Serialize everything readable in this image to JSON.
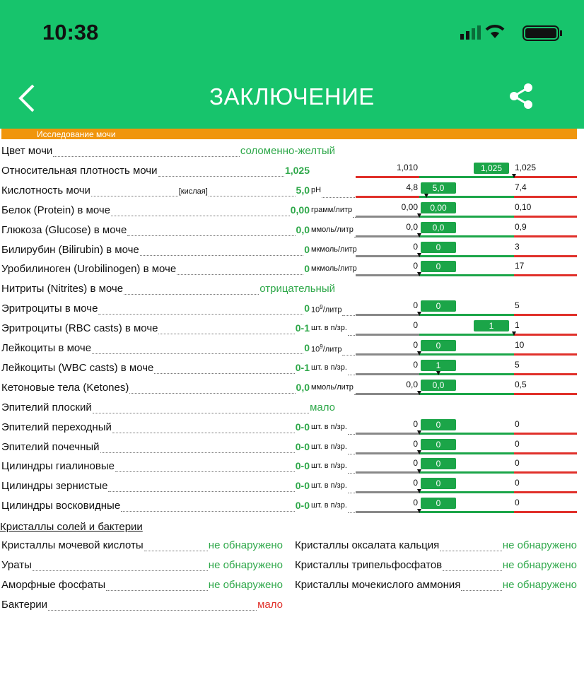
{
  "status_bar": {
    "time": "10:38"
  },
  "header": {
    "title": "ЗАКЛЮЧЕНИЕ"
  },
  "section": "Исследование мочи",
  "rows": [
    {
      "label": "Цвет мочи",
      "value": "соломенно-желтый"
    },
    {
      "label": "Относительная плотность мочи",
      "value": "1,025",
      "range": {
        "low": "1,010",
        "high": "1,025",
        "badge": "1,025"
      }
    },
    {
      "label": "Кислотность мочи",
      "qualifier": "[кислая]",
      "value": "5,0",
      "unit": "pH",
      "range": {
        "low": "4,8",
        "high": "7,4",
        "badge": "5,0"
      }
    },
    {
      "label": "Белок (Protein) в моче",
      "value": "0,00",
      "unit": "грамм/литр",
      "range": {
        "low": "0,00",
        "high": "0,10",
        "badge": "0,00"
      }
    },
    {
      "label": "Глюкоза (Glucose) в моче",
      "value": "0,0",
      "unit": "ммоль/литр",
      "range": {
        "low": "0,0",
        "high": "0,9",
        "badge": "0,0"
      }
    },
    {
      "label": "Билирубин (Bilirubin) в моче",
      "value": "0",
      "unit": "мкмоль/литр",
      "range": {
        "low": "0",
        "high": "3",
        "badge": "0"
      }
    },
    {
      "label": "Уробилиноген (Urobilinogen) в моче",
      "value": "0",
      "unit": "мкмоль/литр",
      "range": {
        "low": "0",
        "high": "17",
        "badge": "0"
      }
    },
    {
      "label": "Нитриты (Nitrites) в моче",
      "value": "отрицательный"
    },
    {
      "label": "Эритроциты в моче",
      "value": "0",
      "unit": "10",
      "unit_sup": "9",
      "unit_rest": "/литр",
      "range": {
        "low": "0",
        "high": "5",
        "badge": "0"
      }
    },
    {
      "label": "Эритроциты (RBC casts) в моче",
      "value": "0-1",
      "unit": "шт. в п/зр.",
      "range": {
        "low": "0",
        "high": "1",
        "badge": "1"
      }
    },
    {
      "label": "Лейкоциты в моче",
      "value": "0",
      "unit": "10",
      "unit_sup": "9",
      "unit_rest": "/литр",
      "range": {
        "low": "0",
        "high": "10",
        "badge": "0"
      }
    },
    {
      "label": "Лейкоциты (WBC casts) в моче",
      "value": "0-1",
      "unit": "шт. в п/зр.",
      "range": {
        "low": "0",
        "high": "5",
        "badge": "1"
      }
    },
    {
      "label": "Кетоновые тела (Ketones)",
      "value": "0,0",
      "unit": "ммоль/литр",
      "range": {
        "low": "0,0",
        "high": "0,5",
        "badge": "0,0"
      }
    },
    {
      "label": "Эпителий плоский",
      "value": "мало"
    },
    {
      "label": "Эпителий переходный",
      "value": "0-0",
      "unit": "шт. в п/зр.",
      "range": {
        "low": "0",
        "high": "0",
        "badge": "0"
      }
    },
    {
      "label": "Эпителий почечный",
      "value": "0-0",
      "unit": "шт. в п/зр.",
      "range": {
        "low": "0",
        "high": "0",
        "badge": "0"
      }
    },
    {
      "label": "Цилиндры гиалиновые",
      "value": "0-0",
      "unit": "шт. в п/зр.",
      "range": {
        "low": "0",
        "high": "0",
        "badge": "0"
      }
    },
    {
      "label": "Цилиндры зернистые",
      "value": "0-0",
      "unit": "шт. в п/зр.",
      "range": {
        "low": "0",
        "high": "0",
        "badge": "0"
      }
    },
    {
      "label": "Цилиндры восковидные",
      "value": "0-0",
      "unit": "шт. в п/зр.",
      "range": {
        "low": "0",
        "high": "0",
        "badge": "0"
      }
    }
  ],
  "crystals": {
    "title": "Кристаллы солей и бактерии",
    "items": [
      {
        "label": "Кристаллы мочевой кислоты",
        "value": "не обнаружено"
      },
      {
        "label": "Кристаллы оксалата кальция",
        "value": "не обнаружено"
      },
      {
        "label": "Ураты",
        "value": "не обнаружено"
      },
      {
        "label": "Кристаллы трипельфосфатов",
        "value": "не обнаружено"
      },
      {
        "label": "Аморфные фосфаты",
        "value": "не обнаружено"
      },
      {
        "label": "Кристаллы мочекислого аммония",
        "value": "не обнаружено"
      },
      {
        "label": "Бактерии",
        "value": "мало",
        "value_color": "#e0302a"
      }
    ]
  }
}
